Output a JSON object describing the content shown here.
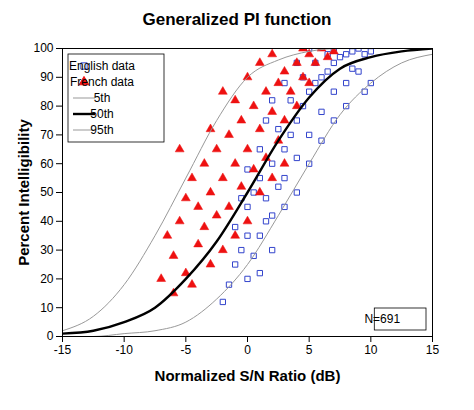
{
  "chart_data": {
    "type": "scatter",
    "title": "Generalized PI function",
    "x_label": "Normalized S/N Ratio (dB)",
    "y_label": "Percent Intelligibility",
    "xlim": [
      -15,
      15
    ],
    "xticks": [
      -15,
      -10,
      -5,
      0,
      5,
      10,
      15
    ],
    "ylim": [
      0,
      100
    ],
    "yticks": [
      0,
      10,
      20,
      30,
      40,
      50,
      60,
      70,
      80,
      90,
      100
    ],
    "grid": false,
    "legend": "upper left",
    "annotations": [
      "N=691"
    ],
    "series": [
      {
        "name": "English data",
        "type": "scatter",
        "marker": "square_open",
        "color": "#3344cc",
        "x": [
          -2,
          -1.5,
          -1,
          -0.5,
          0,
          0.5,
          1,
          1.5,
          0,
          0.5,
          1,
          1.5,
          2,
          2.5,
          2,
          3,
          3.5,
          3,
          4,
          4.5,
          4,
          5,
          5.5,
          5,
          6,
          6.5,
          6,
          7,
          7.5,
          7,
          8,
          8.5,
          8,
          9,
          9.5,
          10,
          9,
          2,
          3,
          4,
          5,
          6,
          7,
          8,
          9.5,
          -1,
          0,
          1,
          2.5,
          3.5,
          4.5,
          5.5,
          6.5,
          1,
          0,
          -0.5,
          3,
          4,
          5,
          7,
          10,
          8.5,
          1.5,
          2
        ],
        "values": [
          12,
          18,
          25,
          30,
          20,
          28,
          35,
          40,
          45,
          50,
          55,
          48,
          60,
          52,
          42,
          65,
          70,
          55,
          75,
          80,
          62,
          85,
          88,
          70,
          90,
          92,
          78,
          95,
          97,
          85,
          98,
          99,
          88,
          100,
          98,
          99,
          92,
          30,
          45,
          50,
          60,
          68,
          75,
          80,
          85,
          38,
          35,
          22,
          72,
          82,
          90,
          95,
          98,
          65,
          58,
          48,
          88,
          95,
          100,
          100,
          88,
          93,
          75,
          82
        ]
      },
      {
        "name": "French data",
        "type": "scatter",
        "marker": "triangle",
        "color": "#ee1111",
        "x": [
          -7,
          -6.5,
          -6,
          -5.5,
          -5,
          -5,
          -4.5,
          -4,
          -4,
          -3.5,
          -3.5,
          -3,
          -3,
          -2.5,
          -2.5,
          -2,
          -2,
          -1.5,
          -1.5,
          -1,
          -1,
          -0.5,
          -0.5,
          0,
          0,
          0.5,
          0.5,
          1,
          1,
          1.5,
          1.5,
          2,
          2,
          2.5,
          2.5,
          3,
          3,
          3.5,
          4,
          4,
          4.5,
          5,
          5,
          5.5,
          6,
          6.5,
          7,
          -6,
          -4.5,
          -2,
          -1,
          0,
          1,
          2,
          -3,
          3,
          -5.5,
          4.5
        ],
        "values": [
          20,
          35,
          28,
          40,
          22,
          48,
          55,
          32,
          45,
          60,
          38,
          25,
          50,
          65,
          42,
          30,
          55,
          70,
          45,
          60,
          35,
          75,
          52,
          65,
          40,
          80,
          58,
          72,
          50,
          85,
          62,
          78,
          55,
          88,
          68,
          92,
          75,
          85,
          95,
          80,
          90,
          98,
          88,
          95,
          100,
          97,
          99,
          15,
          18,
          85,
          82,
          90,
          95,
          98,
          72,
          60,
          65,
          100
        ]
      },
      {
        "name": "5th",
        "type": "line",
        "line_style": "solid",
        "color": "#999999",
        "x": [
          -15,
          -12.5,
          -10,
          -7.5,
          -5,
          -2.5,
          0,
          2.5,
          5,
          7.5,
          10,
          12.5,
          15
        ],
        "values": [
          2,
          7,
          18,
          35,
          55,
          75,
          90,
          96,
          99,
          100,
          100,
          100,
          100
        ]
      },
      {
        "name": "50th",
        "type": "line",
        "line_style": "bold",
        "color": "#000000",
        "x": [
          -15,
          -12.5,
          -10,
          -7.5,
          -5,
          -2.5,
          0,
          2.5,
          5,
          7.5,
          10,
          12.5,
          15
        ],
        "values": [
          1,
          2,
          5,
          10,
          20,
          33,
          50,
          68,
          83,
          93,
          97,
          99,
          100
        ]
      },
      {
        "name": "95th",
        "type": "line",
        "line_style": "solid",
        "color": "#999999",
        "x": [
          -15,
          -12.5,
          -10,
          -7.5,
          -5,
          -2.5,
          0,
          2.5,
          5,
          7.5,
          10,
          12.5,
          15
        ],
        "values": [
          0,
          0,
          1,
          2,
          5,
          13,
          25,
          42,
          60,
          77,
          88,
          95,
          98
        ]
      }
    ]
  }
}
